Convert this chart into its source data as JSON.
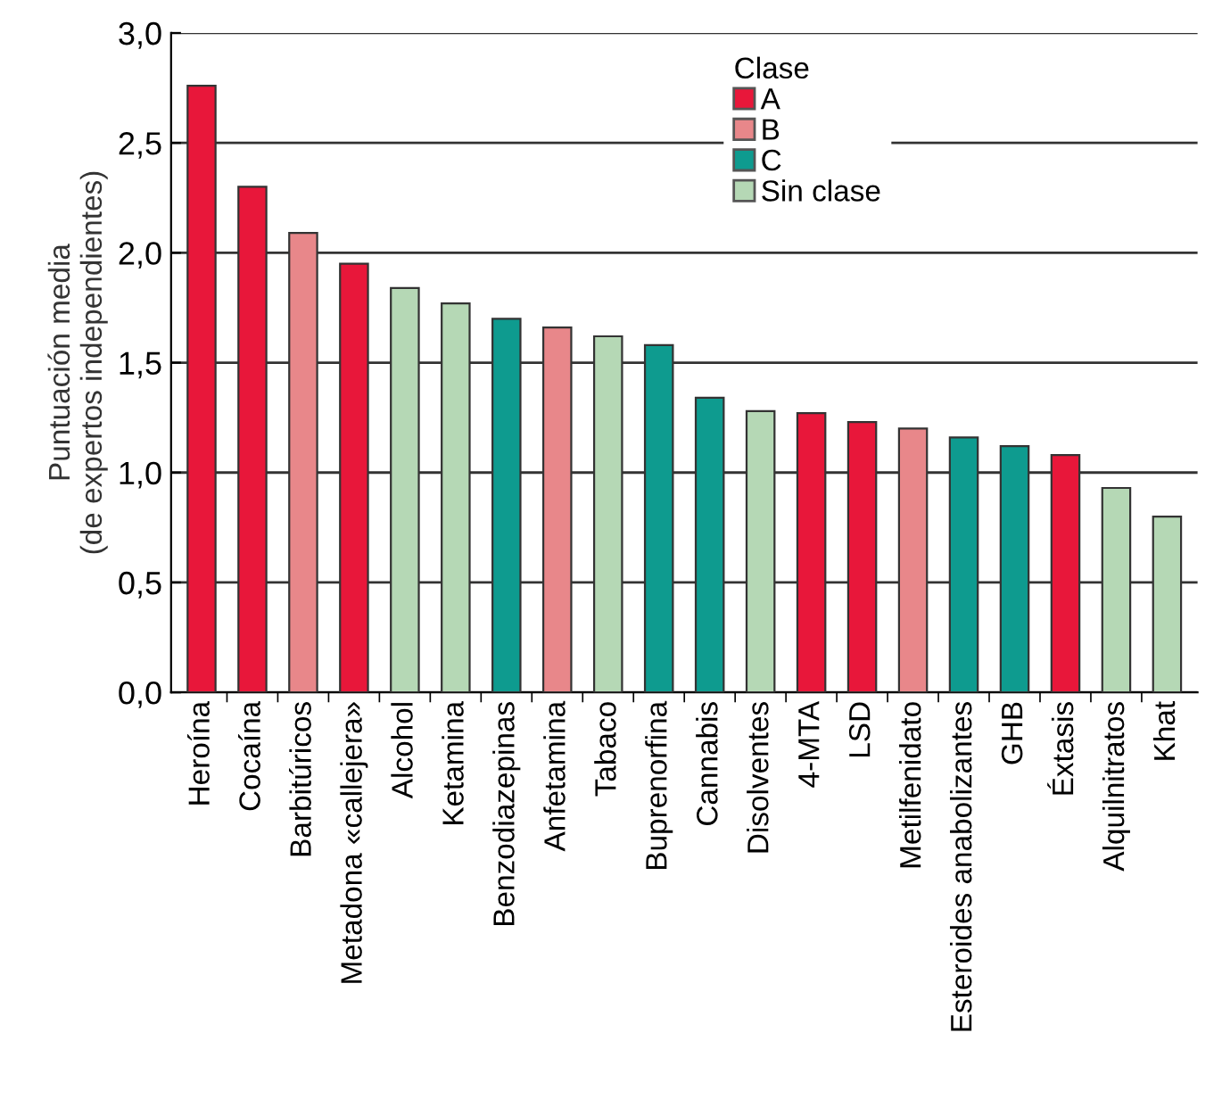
{
  "chart_data": {
    "type": "bar",
    "ylabel": "Puntuación media\n(de expertos independientes)",
    "legend_title": "Clase",
    "legend": "top",
    "grid": "y",
    "categories": [
      "Heroína",
      "Cocaína",
      "Barbitúricos",
      "Metadona «callejera»",
      "Alcohol",
      "Ketamina",
      "Benzodiazepinas",
      "Anfetamina",
      "Tabaco",
      "Buprenorfina",
      "Cannabis",
      "Disolventes",
      "4-MTA",
      "LSD",
      "Metilfenidato",
      "Esteroides anabolizantes",
      "GHB",
      "Éxtasis",
      "Alquilnitratos",
      "Khat"
    ],
    "series": [
      {
        "name": "A",
        "color": "#e8173a",
        "values": [
          2.76,
          2.3,
          null,
          1.95,
          null,
          null,
          null,
          null,
          null,
          null,
          null,
          null,
          1.27,
          1.23,
          null,
          null,
          null,
          1.08,
          null,
          null
        ]
      },
      {
        "name": "B",
        "color": "#e8878a",
        "values": [
          null,
          null,
          2.09,
          null,
          null,
          null,
          null,
          1.66,
          null,
          null,
          null,
          null,
          null,
          null,
          1.2,
          null,
          null,
          null,
          null,
          null
        ]
      },
      {
        "name": "C",
        "color": "#0e9b8f",
        "values": [
          null,
          null,
          null,
          null,
          null,
          null,
          1.7,
          null,
          null,
          1.58,
          1.34,
          null,
          null,
          null,
          null,
          1.16,
          1.12,
          null,
          null,
          null
        ]
      },
      {
        "name": "Sin clase",
        "color": "#b5d8b5",
        "values": [
          null,
          null,
          null,
          null,
          1.84,
          1.77,
          null,
          null,
          1.62,
          null,
          null,
          1.28,
          null,
          null,
          null,
          null,
          null,
          null,
          0.93,
          0.8
        ]
      }
    ],
    "ylim": [
      0,
      3
    ],
    "yticks": [
      {
        "value": 0,
        "label": "0,0"
      },
      {
        "value": 0.5,
        "label": "0,5"
      },
      {
        "value": 1,
        "label": "1,0"
      },
      {
        "value": 1.5,
        "label": "1,5"
      },
      {
        "value": 2,
        "label": "2,0"
      },
      {
        "value": 2.5,
        "label": "2,5"
      },
      {
        "value": 3,
        "label": "3,0"
      }
    ]
  }
}
